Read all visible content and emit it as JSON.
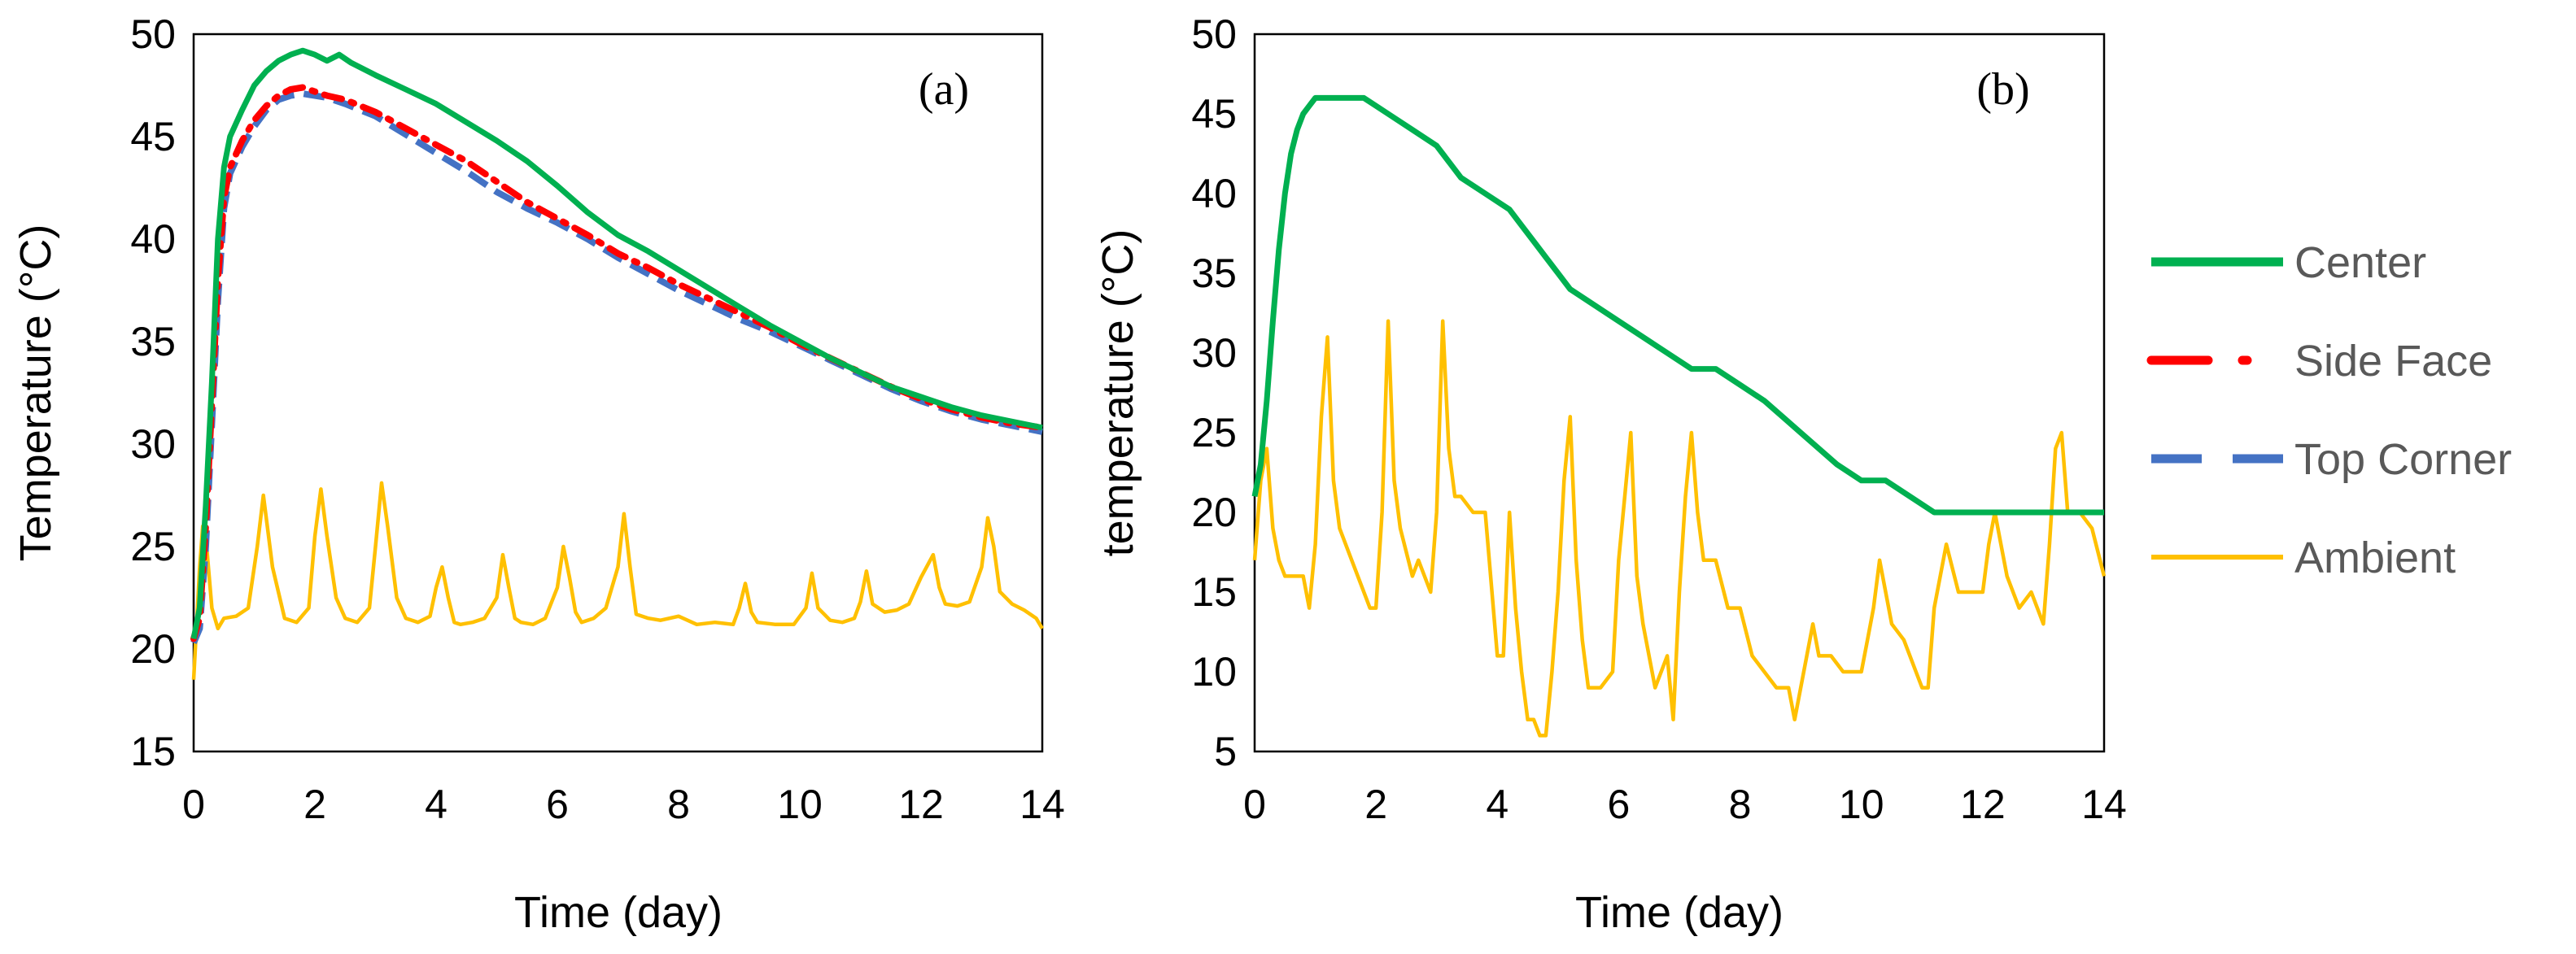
{
  "chart_data": [
    {
      "type": "line",
      "panel_label": "(a)",
      "xlabel": "Time (day)",
      "ylabel": "Temperature (°C)",
      "xlim": [
        0,
        14
      ],
      "ylim": [
        15,
        50
      ],
      "xticks": [
        "0",
        "2",
        "4",
        "6",
        "8",
        "10",
        "12",
        "14"
      ],
      "yticks": [
        "15",
        "20",
        "25",
        "30",
        "35",
        "40",
        "45",
        "50"
      ],
      "grid": false,
      "series": [
        {
          "name": "Center",
          "color": "#00B050",
          "style": "solid",
          "x": [
            0,
            0.1,
            0.2,
            0.3,
            0.4,
            0.5,
            0.6,
            0.8,
            1.0,
            1.2,
            1.4,
            1.6,
            1.8,
            2.0,
            2.2,
            2.4,
            2.6,
            3.0,
            3.5,
            4.0,
            4.5,
            5.0,
            5.5,
            6.0,
            6.5,
            7.0,
            7.5,
            8.0,
            8.5,
            9.0,
            9.5,
            10.0,
            10.5,
            11.0,
            11.5,
            12.0,
            12.5,
            13.0,
            13.5,
            14.0
          ],
          "y": [
            20.5,
            22,
            27,
            33,
            40,
            43.5,
            45,
            46.3,
            47.5,
            48.2,
            48.7,
            49,
            49.2,
            49,
            48.7,
            49,
            48.6,
            48,
            47.3,
            46.6,
            45.7,
            44.8,
            43.8,
            42.6,
            41.3,
            40.2,
            39.4,
            38.5,
            37.6,
            36.7,
            35.8,
            35,
            34.2,
            33.5,
            32.8,
            32.3,
            31.8,
            31.4,
            31.1,
            30.8
          ]
        },
        {
          "name": "Side Face",
          "color": "#FF0000",
          "style": "dash-dot",
          "x": [
            0,
            0.1,
            0.2,
            0.3,
            0.4,
            0.5,
            0.6,
            0.8,
            1.0,
            1.2,
            1.4,
            1.6,
            1.8,
            2.0,
            2.2,
            2.5,
            3.0,
            3.5,
            4.0,
            4.5,
            5.0,
            5.5,
            6.0,
            6.5,
            7.0,
            7.5,
            8.0,
            8.5,
            9.0,
            9.5,
            10.0,
            10.5,
            11.0,
            11.5,
            12.0,
            12.5,
            13.0,
            13.5,
            14.0
          ],
          "y": [
            20.5,
            21.5,
            26,
            32,
            38,
            42,
            43.5,
            44.8,
            45.8,
            46.5,
            47,
            47.3,
            47.4,
            47.2,
            47,
            46.8,
            46.2,
            45.4,
            44.6,
            43.8,
            42.8,
            41.8,
            41,
            40.2,
            39.3,
            38.6,
            37.8,
            37.1,
            36.4,
            35.7,
            34.9,
            34.2,
            33.5,
            32.8,
            32.2,
            31.7,
            31.3,
            31,
            30.8
          ]
        },
        {
          "name": "Top Corner",
          "color": "#4472C4",
          "style": "dashed",
          "x": [
            0,
            0.1,
            0.2,
            0.3,
            0.4,
            0.5,
            0.6,
            0.8,
            1.0,
            1.2,
            1.4,
            1.6,
            1.8,
            2.0,
            2.2,
            2.5,
            3.0,
            3.5,
            4.0,
            4.5,
            5.0,
            5.5,
            6.0,
            6.5,
            7.0,
            7.5,
            8.0,
            8.5,
            9.0,
            9.5,
            10.0,
            10.5,
            11.0,
            11.5,
            12.0,
            12.5,
            13.0,
            13.5,
            14.0
          ],
          "y": [
            20.3,
            21,
            25,
            31,
            37,
            41.5,
            43.2,
            44.5,
            45.5,
            46.3,
            46.8,
            47,
            47.1,
            47,
            46.9,
            46.6,
            46,
            45.1,
            44.2,
            43.3,
            42.3,
            41.5,
            40.8,
            40,
            39.1,
            38.3,
            37.5,
            36.8,
            36.1,
            35.5,
            34.8,
            34.1,
            33.4,
            32.7,
            32.1,
            31.6,
            31.2,
            30.9,
            30.6
          ]
        },
        {
          "name": "Ambient",
          "color": "#FFC000",
          "style": "solid",
          "x": [
            0,
            0.1,
            0.15,
            0.2,
            0.3,
            0.4,
            0.5,
            0.7,
            0.9,
            1.05,
            1.15,
            1.3,
            1.5,
            1.7,
            1.9,
            2.0,
            2.1,
            2.2,
            2.35,
            2.5,
            2.7,
            2.9,
            3.0,
            3.1,
            3.2,
            3.35,
            3.5,
            3.7,
            3.9,
            4.0,
            4.1,
            4.2,
            4.3,
            4.4,
            4.6,
            4.8,
            5.0,
            5.1,
            5.2,
            5.3,
            5.4,
            5.6,
            5.8,
            6.0,
            6.1,
            6.2,
            6.3,
            6.4,
            6.6,
            6.8,
            7.0,
            7.1,
            7.2,
            7.3,
            7.5,
            7.7,
            8.0,
            8.3,
            8.6,
            8.9,
            9.0,
            9.1,
            9.2,
            9.3,
            9.6,
            9.9,
            10.1,
            10.2,
            10.3,
            10.5,
            10.7,
            10.9,
            11.0,
            11.1,
            11.2,
            11.4,
            11.6,
            11.8,
            12.0,
            12.2,
            12.3,
            12.4,
            12.6,
            12.8,
            13.0,
            13.1,
            13.2,
            13.3,
            13.5,
            13.7,
            13.9,
            14.0
          ],
          "y": [
            18.5,
            24,
            26,
            25.5,
            22,
            21,
            21.5,
            21.6,
            22,
            25,
            27.5,
            24,
            21.5,
            21.3,
            22,
            25.5,
            27.8,
            25.5,
            22.5,
            21.5,
            21.3,
            22,
            25,
            28.1,
            26,
            22.5,
            21.5,
            21.3,
            21.6,
            23,
            24,
            22.5,
            21.3,
            21.2,
            21.3,
            21.5,
            22.5,
            24.6,
            23,
            21.5,
            21.3,
            21.2,
            21.5,
            23,
            25,
            23.5,
            21.8,
            21.3,
            21.5,
            22,
            24,
            26.6,
            24,
            21.7,
            21.5,
            21.4,
            21.6,
            21.2,
            21.3,
            21.2,
            22,
            23.2,
            21.8,
            21.3,
            21.2,
            21.2,
            22,
            23.7,
            22,
            21.4,
            21.3,
            21.5,
            22.3,
            23.8,
            22.2,
            21.8,
            21.9,
            22.2,
            23.5,
            24.6,
            23,
            22.2,
            22.1,
            22.3,
            24,
            26.4,
            25,
            22.8,
            22.2,
            21.9,
            21.5,
            21
          ]
        }
      ]
    },
    {
      "type": "line",
      "panel_label": "(b)",
      "xlabel": "Time (day)",
      "ylabel": "temperature (°C)",
      "xlim": [
        0,
        14
      ],
      "ylim": [
        5,
        50
      ],
      "xticks": [
        "0",
        "2",
        "4",
        "6",
        "8",
        "10",
        "12",
        "14"
      ],
      "yticks": [
        "5",
        "10",
        "15",
        "20",
        "25",
        "30",
        "35",
        "40",
        "45",
        "50"
      ],
      "grid": false,
      "series": [
        {
          "name": "Center",
          "color": "#00B050",
          "style": "solid",
          "x": [
            0,
            0.1,
            0.2,
            0.3,
            0.4,
            0.5,
            0.6,
            0.7,
            0.8,
            0.9,
            1.0,
            1.5,
            1.8,
            2.2,
            2.6,
            3.0,
            3.4,
            3.8,
            4.2,
            4.4,
            4.6,
            4.8,
            5.0,
            5.2,
            5.6,
            6.0,
            6.4,
            6.8,
            7.2,
            7.6,
            8.0,
            8.4,
            8.7,
            9.0,
            9.3,
            9.6,
            10.0,
            10.4,
            10.8,
            11.2,
            11.6,
            12.0,
            12.5,
            13.0,
            13.5,
            14.0
          ],
          "y": [
            21,
            23,
            27,
            32,
            36.5,
            40,
            42.5,
            44,
            45,
            45.5,
            46,
            46,
            46,
            45,
            44,
            43,
            41,
            40,
            39,
            38,
            37,
            36,
            35,
            34,
            33,
            32,
            31,
            30,
            29,
            29,
            28,
            27,
            26,
            25,
            24,
            23,
            22,
            22,
            21,
            20,
            20,
            20,
            20,
            20,
            20,
            20
          ]
        },
        {
          "name": "Ambient",
          "color": "#FFC000",
          "style": "solid",
          "x": [
            0,
            0.1,
            0.2,
            0.3,
            0.4,
            0.5,
            0.6,
            0.8,
            0.9,
            1.0,
            1.1,
            1.2,
            1.3,
            1.4,
            1.6,
            1.7,
            1.9,
            2.0,
            2.1,
            2.2,
            2.3,
            2.4,
            2.6,
            2.7,
            2.9,
            3.0,
            3.1,
            3.2,
            3.3,
            3.4,
            3.6,
            3.8,
            4.0,
            4.1,
            4.2,
            4.3,
            4.4,
            4.5,
            4.6,
            4.7,
            4.8,
            4.9,
            5.0,
            5.1,
            5.2,
            5.3,
            5.4,
            5.5,
            5.7,
            5.9,
            6.0,
            6.1,
            6.2,
            6.3,
            6.4,
            6.6,
            6.8,
            6.9,
            7.0,
            7.1,
            7.2,
            7.3,
            7.4,
            7.6,
            7.8,
            8.0,
            8.2,
            8.4,
            8.6,
            8.8,
            8.9,
            9.1,
            9.2,
            9.3,
            9.5,
            9.7,
            10.0,
            10.1,
            10.2,
            10.3,
            10.5,
            10.7,
            10.9,
            11.0,
            11.1,
            11.2,
            11.4,
            11.6,
            11.8,
            12.0,
            12.1,
            12.2,
            12.3,
            12.4,
            12.6,
            12.8,
            13.0,
            13.1,
            13.2,
            13.3,
            13.4,
            13.6,
            13.8,
            14.0
          ],
          "y": [
            17,
            22,
            24,
            19,
            17,
            16,
            16,
            16,
            14,
            18,
            26,
            31,
            22,
            19,
            17,
            16,
            14,
            14,
            20,
            32,
            22,
            19,
            16,
            17,
            15,
            20,
            32,
            24,
            21,
            21,
            20,
            20,
            11,
            11,
            20,
            14,
            10,
            7,
            7,
            6,
            6,
            10,
            15,
            22,
            26,
            17,
            12,
            9,
            9,
            10,
            17,
            21,
            25,
            16,
            13,
            9,
            11,
            7,
            15,
            21,
            25,
            20,
            17,
            17,
            14,
            14,
            11,
            10,
            9,
            9,
            7,
            11,
            13,
            11,
            11,
            10,
            10,
            12,
            14,
            17,
            13,
            12,
            10,
            9,
            9,
            14,
            18,
            15,
            15,
            15,
            18,
            20,
            18,
            16,
            14,
            15,
            13,
            18,
            24,
            25,
            20,
            20,
            19,
            16
          ]
        }
      ]
    }
  ],
  "legend": {
    "placement": "right",
    "entries": [
      {
        "label": "Center",
        "color": "#00B050",
        "style": "solid"
      },
      {
        "label": "Side Face",
        "color": "#FF0000",
        "style": "dash-dot"
      },
      {
        "label": "Top Corner",
        "color": "#4472C4",
        "style": "dashed"
      },
      {
        "label": "Ambient",
        "color": "#FFC000",
        "style": "solid-thin"
      }
    ]
  }
}
